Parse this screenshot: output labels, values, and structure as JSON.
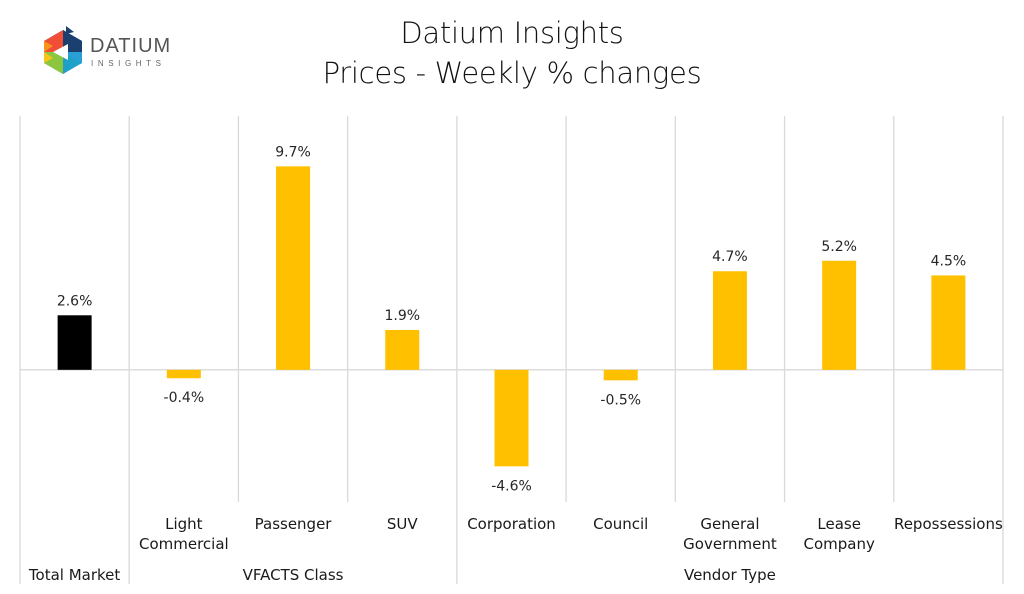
{
  "logo": {
    "name": "DATIUM",
    "subtitle": "INSIGHTS"
  },
  "colors": {
    "total": "#000000",
    "segment": "#FFC000",
    "grid": "#D9D9D9"
  },
  "chart_data": {
    "type": "bar",
    "title": "Datium Insights",
    "subtitle": "Prices - Weekly % changes",
    "xlabel": "",
    "ylabel": "",
    "ylim": [
      -6.3,
      12.1
    ],
    "grid": false,
    "legend": "none",
    "value_format": "percent_1dp",
    "categories": [
      [
        "Total Market"
      ],
      [
        "Light",
        "Commercial"
      ],
      [
        "Passenger"
      ],
      [
        "SUV"
      ],
      [
        "Corporation"
      ],
      [
        "Council"
      ],
      [
        "General",
        "Government"
      ],
      [
        "Lease",
        "Company"
      ],
      [
        "Repossessions"
      ]
    ],
    "values": [
      2.6,
      -0.4,
      9.7,
      1.9,
      -4.6,
      -0.5,
      4.7,
      5.2,
      4.5
    ],
    "data_labels": [
      "2.6%",
      "-0.4%",
      "9.7%",
      "1.9%",
      "-4.6%",
      "-0.5%",
      "4.7%",
      "5.2%",
      "4.5%"
    ],
    "bar_colors": [
      "#000000",
      "#FFC000",
      "#FFC000",
      "#FFC000",
      "#FFC000",
      "#FFC000",
      "#FFC000",
      "#FFC000",
      "#FFC000"
    ],
    "groups": [
      {
        "label": "Total Market",
        "start": 0,
        "end": 0
      },
      {
        "label": "VFACTS Class",
        "start": 1,
        "end": 3
      },
      {
        "label": "Vendor Type",
        "start": 4,
        "end": 8
      }
    ]
  }
}
